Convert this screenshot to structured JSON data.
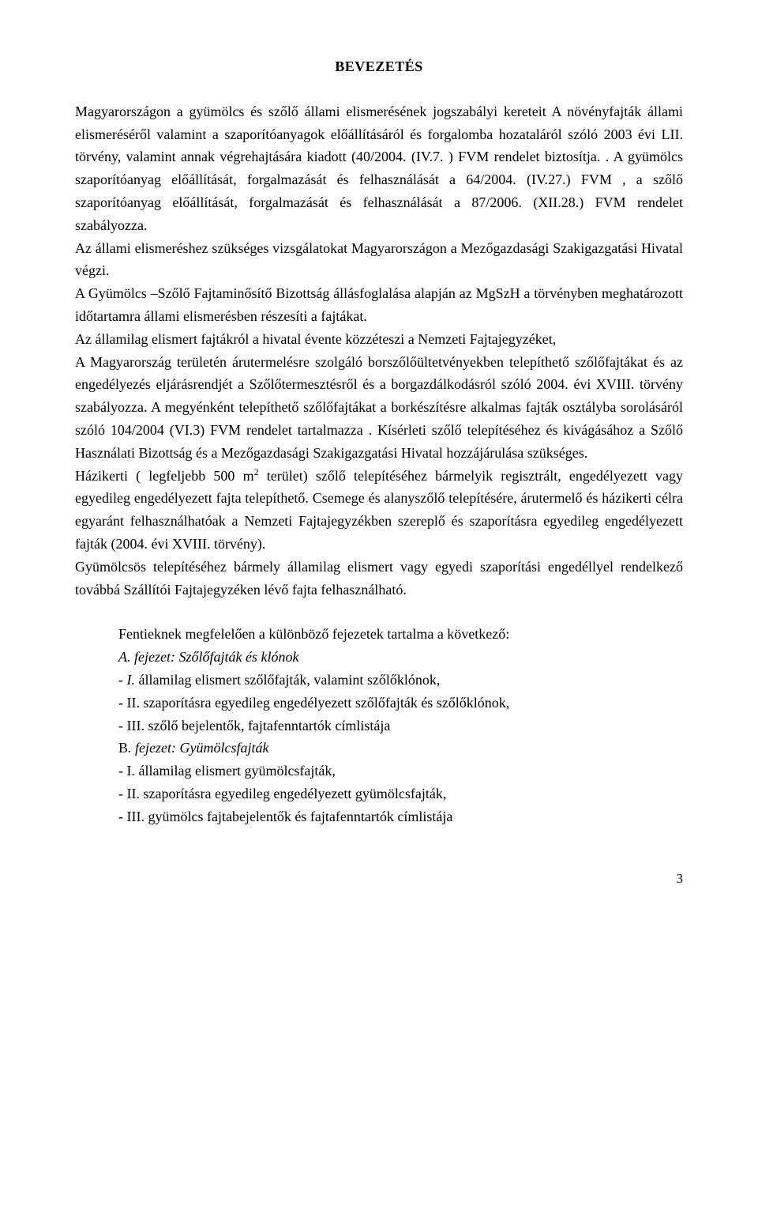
{
  "heading": "BEVEZETÉS",
  "para1": "Magyarországon a gyümölcs és szőlő állami elismerésének jogszabályi kereteit A növényfajták állami elismeréséről valamint a szaporítóanyagok előállításáról és forgalomba hozataláról szóló 2003 évi LII. törvény, valamint annak végrehajtására kiadott (40/2004. (IV.7. ) FVM rendelet biztosítja. . A gyümölcs szaporítóanyag előállítását, forgalmazását és felhasználását a 64/2004. (IV.27.) FVM , a szőlő szaporítóanyag előállítását, forgalmazását és felhasználását a 87/2006. (XII.28.) FVM rendelet szabályozza.",
  "para2": "Az állami elismeréshez szükséges vizsgálatokat Magyarországon a Mezőgazdasági Szakigazgatási Hivatal végzi.",
  "para3": "A Gyümölcs –Szőlő Fajtaminősítő Bizottság állásfoglalása alapján az MgSzH a törvényben meghatározott időtartamra állami elismerésben részesíti a fajtákat.",
  "para4": "Az államilag elismert fajtákról a hivatal évente közzéteszi a Nemzeti Fajtajegyzéket,",
  "para5": "A Magyarország területén árutermelésre szolgáló borszőlőültetvényekben telepíthető szőlőfajtákat és az engedélyezés eljárásrendjét a Szőlőtermesztésről és a borgazdálkodásról szóló 2004. évi XVIII. törvény szabályozza. A megyénként telepíthető szőlőfajtákat a borkészítésre alkalmas fajták osztályba sorolásáról szóló 104/2004 (VI.3) FVM rendelet tartalmazza . Kísérleti szőlő telepítéséhez és kivágásához a Szőlő Használati Bizottság és a Mezőgazdasági Szakigazgatási Hivatal hozzájárulása szükséges.",
  "para6a": "Házikerti ( legfeljebb 500 m",
  "para6b": " terület) szőlő telepítéséhez bármelyik regisztrált, engedélyezett vagy egyedileg engedélyezett fajta telepíthető. Csemege és alanyszőlő telepítésére, árutermelő és házikerti célra egyaránt felhasználhatóak a Nemzeti Fajtajegyzékben szereplő és szaporításra egyedileg engedélyezett fajták (2004. évi XVIII. törvény).",
  "para7": "Gyümölcsös telepítéséhez bármely államilag elismert vagy egyedi szaporítási engedéllyel rendelkező továbbá Szállítói Fajtajegyzéken lévő fajta felhasználható.",
  "list_intro": "Fentieknek megfelelően a különböző fejezetek tartalma a következő:",
  "items": [
    "A. fejezet: Szőlőfajták és klónok",
    "- I. államilag elismert szőlőfajták, valamint szőlőklónok,",
    "- II. szaporításra egyedileg engedélyezett szőlőfajták és szőlőklónok,",
    "- III. szőlő bejelentők, fajtafenntartók címlistája",
    "B. fejezet: Gyümölcsfajták",
    "- I. államilag elismert gyümölcsfajták,",
    "- II. szaporításra egyedileg engedélyezett gyümölcsfajták,",
    "- III. gyümölcs fajtabejelentők és fajtafenntartók címlistája"
  ],
  "superscript": "2",
  "page_number": "3"
}
